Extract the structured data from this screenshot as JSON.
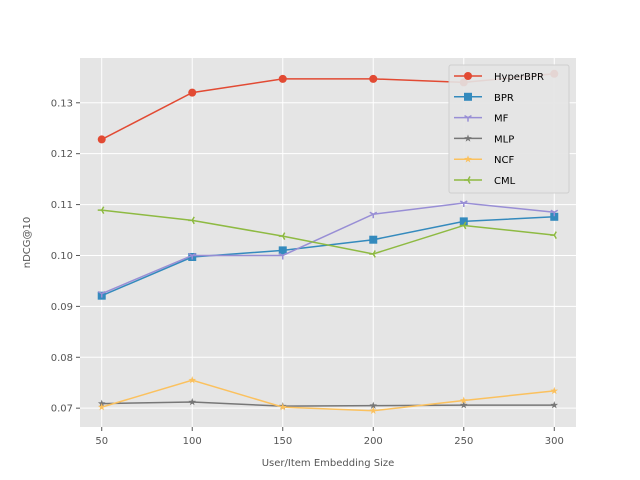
{
  "chart_data": {
    "type": "line",
    "title": "",
    "xlabel": "User/Item Embedding Size",
    "ylabel": "nDCG@10",
    "x": [
      50,
      100,
      150,
      200,
      250,
      300
    ],
    "xlim": [
      38,
      312
    ],
    "ylim": [
      0.0663,
      0.1388
    ],
    "xticks": [
      "50",
      "100",
      "150",
      "200",
      "250",
      "300"
    ],
    "yticks": [
      "0.07",
      "0.08",
      "0.09",
      "0.10",
      "0.11",
      "0.12",
      "0.13"
    ],
    "grid": true,
    "legend_position": "top-right",
    "series": [
      {
        "name": "HyperBPR",
        "color": "#E24A33",
        "marker": "circle",
        "values": [
          0.1228,
          0.132,
          0.1347,
          0.1347,
          0.134,
          0.1357
        ]
      },
      {
        "name": "BPR",
        "color": "#348ABD",
        "marker": "square",
        "values": [
          0.0921,
          0.0997,
          0.101,
          0.1031,
          0.1067,
          0.1076
        ]
      },
      {
        "name": "MF",
        "color": "#988ED5",
        "marker": "tri-down",
        "values": [
          0.0925,
          0.1,
          0.1,
          0.1081,
          0.1103,
          0.1085
        ]
      },
      {
        "name": "MLP",
        "color": "#777777",
        "marker": "star",
        "values": [
          0.0709,
          0.0712,
          0.0704,
          0.0705,
          0.0706,
          0.0706
        ]
      },
      {
        "name": "NCF",
        "color": "#FBC15E",
        "marker": "star",
        "values": [
          0.0702,
          0.0755,
          0.0702,
          0.0695,
          0.0715,
          0.0734
        ]
      },
      {
        "name": "CML",
        "color": "#8EBA42",
        "marker": "tri-right",
        "values": [
          0.1089,
          0.1069,
          0.1038,
          0.1003,
          0.1059,
          0.104
        ]
      }
    ]
  }
}
